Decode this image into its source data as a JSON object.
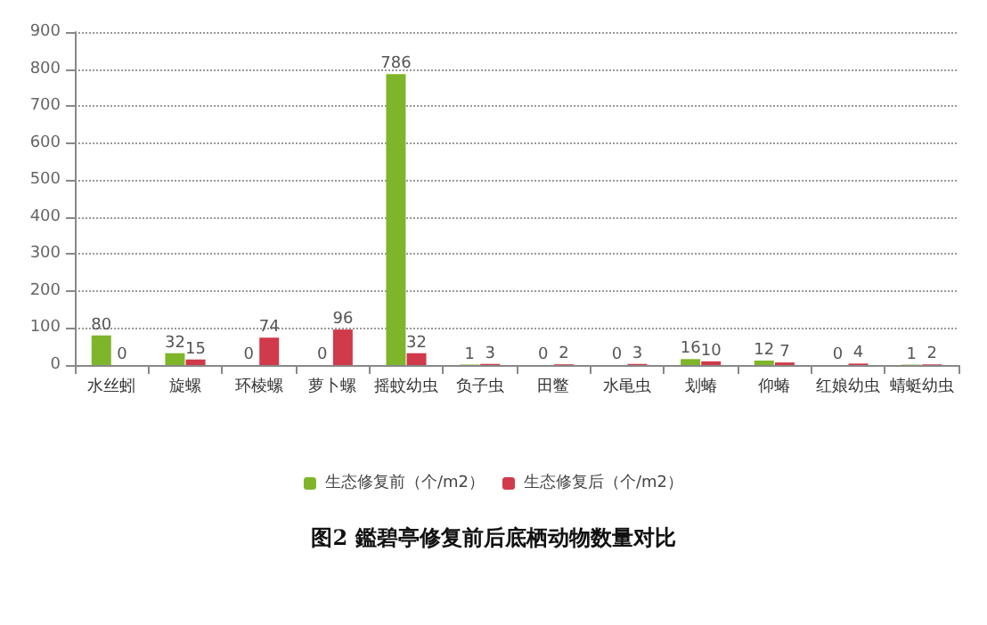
{
  "chart_data": {
    "type": "bar",
    "title": "图2 鑑碧亭修复前后底栖动物数量对比",
    "categories": [
      "水丝蚓",
      "旋螺",
      "环棱螺",
      "萝卜螺",
      "摇蚊幼虫",
      "负子虫",
      "田鳖",
      "水黾虫",
      "划蝽",
      "仰蝽",
      "红娘幼虫",
      "蜻蜓幼虫"
    ],
    "series": [
      {
        "name": "生态修复前（个/m2）",
        "color": "#7fb52a",
        "values": [
          80,
          32,
          0,
          0,
          786,
          1,
          0,
          0,
          16,
          12,
          0,
          1
        ]
      },
      {
        "name": "生态修复后（个/m2）",
        "color": "#d03a4a",
        "values": [
          0,
          15,
          74,
          96,
          32,
          3,
          2,
          3,
          10,
          7,
          4,
          2
        ]
      }
    ],
    "ylim": [
      0,
      900
    ],
    "yticks": [
      0,
      100,
      200,
      300,
      400,
      500,
      600,
      700,
      800,
      900
    ],
    "grid": "y",
    "legend": "bottom",
    "data_labels": true
  }
}
